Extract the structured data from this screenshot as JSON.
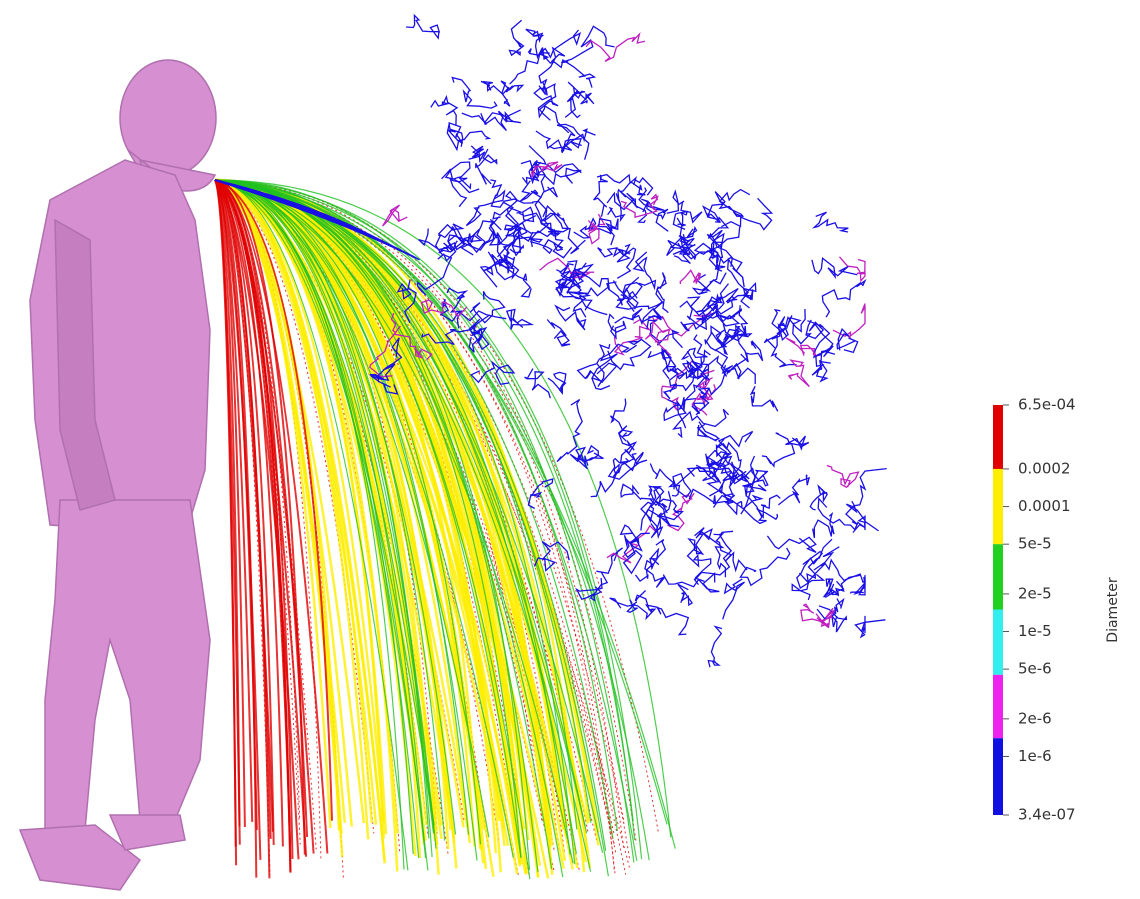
{
  "colorbar": {
    "title": "Diameter",
    "scale": "log",
    "lim": [
      3.4e-07,
      0.00065
    ],
    "ticks": [
      {
        "value": 0.00065,
        "label": "6.5e-04"
      },
      {
        "value": 0.0002,
        "label": "0.0002"
      },
      {
        "value": 0.0001,
        "label": "0.0001"
      },
      {
        "value": 5e-05,
        "label": "5e-5"
      },
      {
        "value": 2e-05,
        "label": "2e-5"
      },
      {
        "value": 1e-05,
        "label": "1e-5"
      },
      {
        "value": 5e-06,
        "label": "5e-6"
      },
      {
        "value": 2e-06,
        "label": "2e-6"
      },
      {
        "value": 1e-06,
        "label": "1e-6"
      },
      {
        "value": 3.4e-07,
        "label": "3.4e-07"
      }
    ],
    "bands": [
      {
        "from": 0.0002,
        "to": 0.00065,
        "color": "#e00000"
      },
      {
        "from": 5e-05,
        "to": 0.0002,
        "color": "#ffee00"
      },
      {
        "from": 1.5e-05,
        "to": 5e-05,
        "color": "#22d022"
      },
      {
        "from": 4.5e-06,
        "to": 1.5e-05,
        "color": "#33eeee"
      },
      {
        "from": 1.4e-06,
        "to": 4.5e-06,
        "color": "#ee22ee"
      },
      {
        "from": 3.4e-07,
        "to": 1.4e-06,
        "color": "#1010e0"
      }
    ]
  }
}
